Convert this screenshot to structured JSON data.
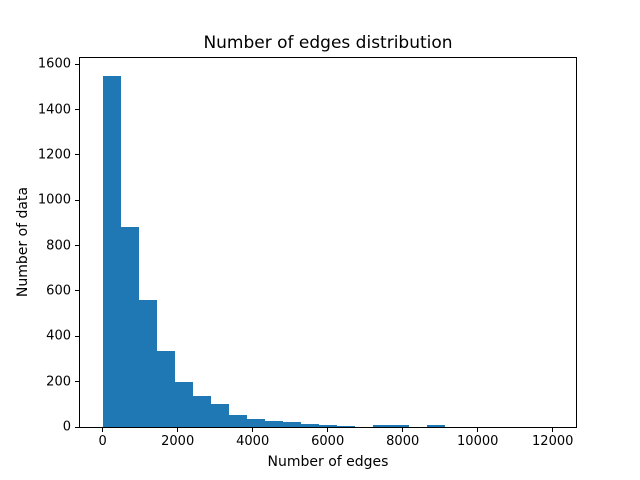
{
  "chart_data": {
    "type": "bar",
    "subtype": "histogram",
    "title": "Number of edges distribution",
    "xlabel": "Number of edges",
    "ylabel": "Number of data",
    "bar_color": "#1f77b4",
    "background_color": "#ffffff",
    "text_color": "#000000",
    "grid": false,
    "legend_position": "none",
    "bins": {
      "start": 0,
      "width": 480.8,
      "count": 25
    },
    "counts": [
      1550,
      880,
      560,
      335,
      200,
      135,
      100,
      53,
      35,
      26,
      23,
      14,
      7,
      5,
      0,
      9,
      9,
      0,
      8,
      0,
      0,
      0,
      0,
      0,
      0
    ],
    "xlim": [
      -605,
      12621
    ],
    "ylim": [
      0,
      1627.5
    ],
    "x_ticks": [
      0,
      2000,
      4000,
      6000,
      8000,
      10000,
      12000
    ],
    "y_ticks": [
      0,
      200,
      400,
      600,
      800,
      1000,
      1200,
      1400,
      1600
    ]
  }
}
